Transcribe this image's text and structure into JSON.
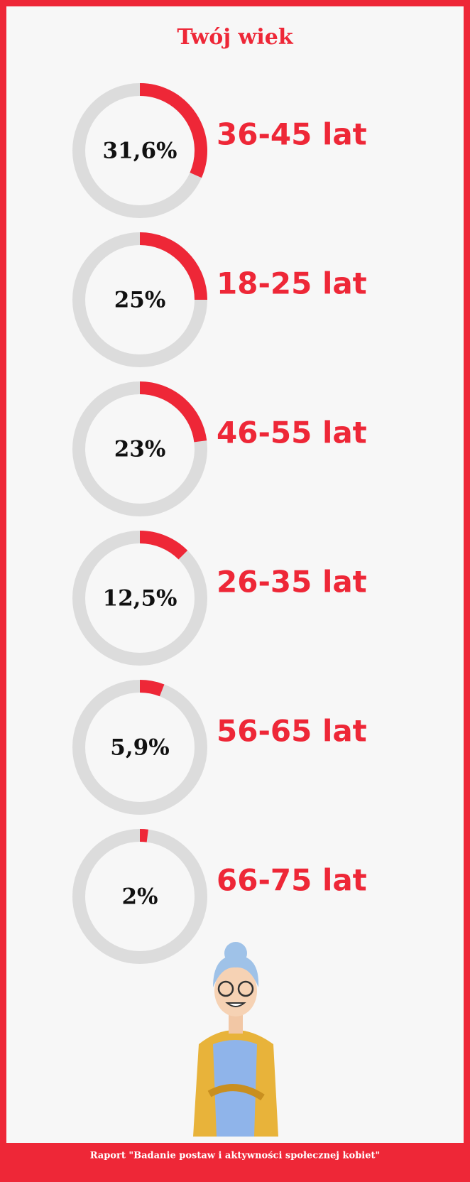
{
  "chart_data": {
    "type": "donut",
    "title": "Twój wiek",
    "categories": [
      "36-45 lat",
      "18-25 lat",
      "46-55 lat",
      "26-35 lat",
      "56-65 lat",
      "66-75 lat"
    ],
    "values": [
      31.6,
      25,
      23,
      12.5,
      5.9,
      2
    ],
    "value_labels": [
      "31,6%",
      "25%",
      "23%",
      "12,5%",
      "5,9%",
      "2%"
    ],
    "color": "#ee2737",
    "track_color": "#dcdcdc"
  },
  "footer": {
    "text": "Raport \"Badanie postaw i aktywności społecznej kobiet\""
  }
}
